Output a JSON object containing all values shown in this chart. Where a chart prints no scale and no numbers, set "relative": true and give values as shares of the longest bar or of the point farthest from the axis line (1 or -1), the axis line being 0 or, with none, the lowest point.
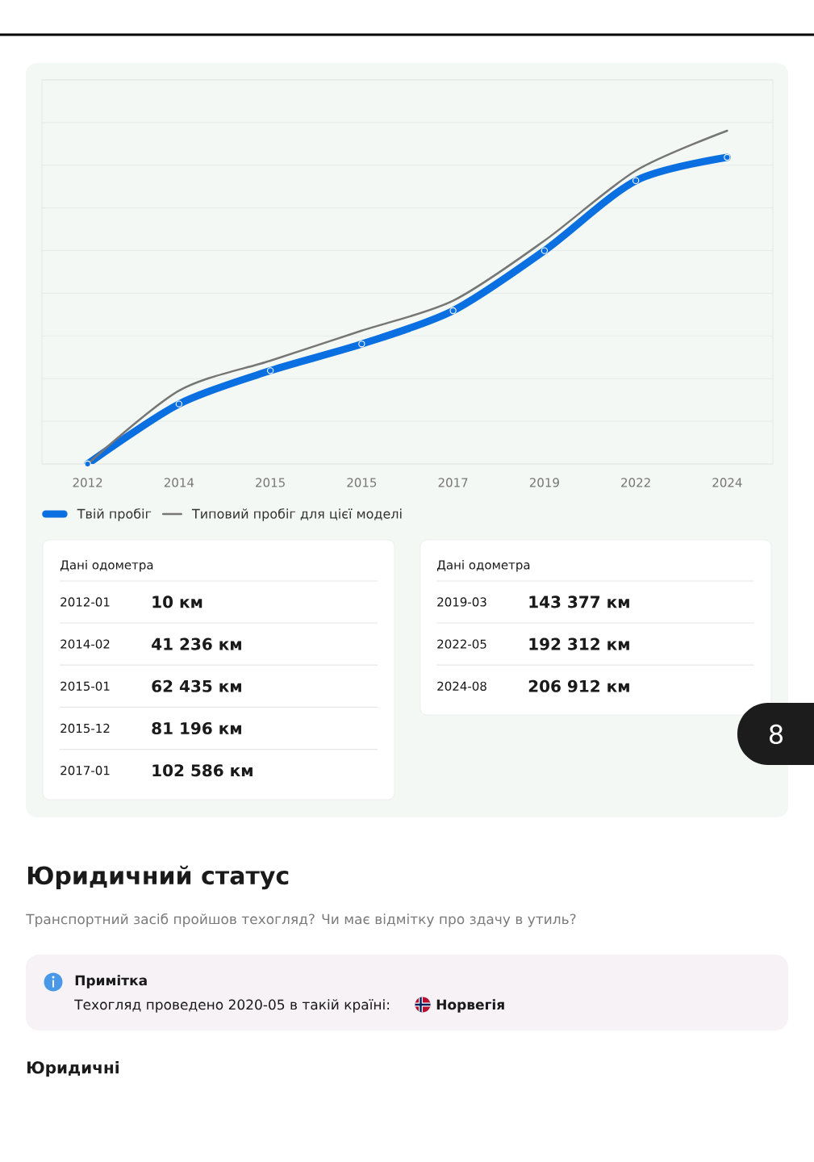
{
  "chart_data": {
    "type": "line",
    "relative": true,
    "categories": [
      "2012",
      "2014",
      "2015",
      "2015",
      "2017",
      "2019",
      "2022",
      "2024"
    ],
    "series": [
      {
        "name": "Твій пробіг",
        "color": "#0a6fe0",
        "marker": "circle",
        "values": [
          0,
          0.18,
          0.28,
          0.36,
          0.46,
          0.64,
          0.85,
          0.92
        ]
      },
      {
        "name": "Типовий пробіг для цієї моделі",
        "color": "#767676",
        "values": [
          0,
          0.22,
          0.31,
          0.4,
          0.49,
          0.67,
          0.88,
          1
        ]
      }
    ],
    "grid": "y",
    "legend": "bottom left",
    "tick_labels": "x",
    "annotations": [
      "Дані одометра",
      "2012-01",
      "10 км",
      "2014-02",
      "41 236 км",
      "2015-01",
      "62 435 км",
      "2015-12",
      "81 196 км",
      "2017-01",
      "102 586 км",
      "Дані одометра",
      "2019-03",
      "143 377 км",
      "2022-05",
      "192 312 км",
      "2024-08",
      "206 912 км",
      "8",
      "Юридичний статус",
      "Транспортний засіб пройшов техогляд? Чи має відмітку про здачу в утиль?",
      "Примітка",
      "Техогляд проведено 2020-05 в такій країні:",
      "Норвегія",
      "Юридичні"
    ]
  }
}
